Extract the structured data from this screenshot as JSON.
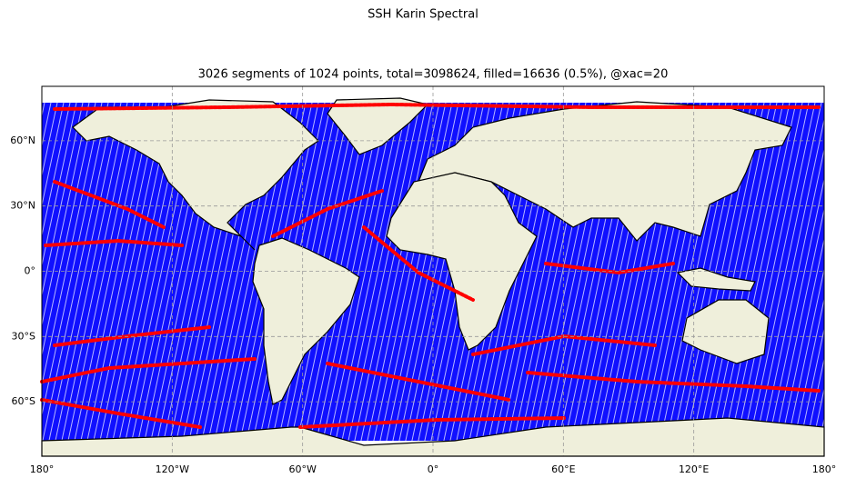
{
  "chart_data": {
    "type": "map",
    "title": "SSH Karin Spectral",
    "subtitle": "3026 segments of 1024 points, total=3098624, filled=16636 (0.5%), @xac=20",
    "xlim": [
      -180,
      180
    ],
    "ylim": [
      -85,
      85
    ],
    "xticks": [
      {
        "value": -180,
        "label": "180°"
      },
      {
        "value": -120,
        "label": "120°W"
      },
      {
        "value": -60,
        "label": "60°W"
      },
      {
        "value": 0,
        "label": "0°"
      },
      {
        "value": 60,
        "label": "60°E"
      },
      {
        "value": 120,
        "label": "120°E"
      },
      {
        "value": 180,
        "label": "180°"
      }
    ],
    "yticks": [
      {
        "value": -60,
        "label": "60°S"
      },
      {
        "value": -30,
        "label": "30°S"
      },
      {
        "value": 0,
        "label": "0°"
      },
      {
        "value": 30,
        "label": "30°N"
      },
      {
        "value": 60,
        "label": "60°N"
      }
    ],
    "grid": true
  }
}
